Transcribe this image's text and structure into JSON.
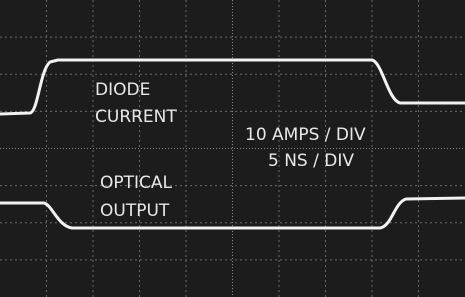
{
  "traces": [
    {
      "label": [
        "DIODE",
        "CURRENT"
      ]
    },
    {
      "label": [
        "OPTICAL",
        "OUTPUT"
      ]
    }
  ],
  "scale": {
    "vertical": "10 AMPS / DIV",
    "horizontal": "5 NS / DIV"
  }
}
